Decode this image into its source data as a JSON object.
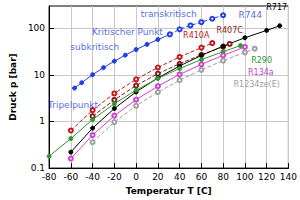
{
  "chart_data": {
    "type": "line",
    "x_label": "Temperatur T [C]",
    "y_label": "Druck p [bar]",
    "log": "y",
    "grid": true,
    "xlim": [
      -80,
      140
    ],
    "xticks": [
      -80,
      -60,
      -40,
      -20,
      0,
      20,
      40,
      60,
      80,
      100,
      120,
      140
    ],
    "ylim": [
      0.1,
      300
    ],
    "yticks": [
      0.1,
      1,
      10,
      100
    ],
    "series": [
      {
        "color": "#1f3fe0",
        "marker": "circle",
        "line_style": "solid",
        "x": [
          -56.6,
          -50,
          -40,
          -30,
          -20,
          -10,
          0,
          10,
          20,
          31
        ],
        "values": [
          5.2,
          6.8,
          10.1,
          14.3,
          19.7,
          26.5,
          34.9,
          45,
          57.3,
          73.8
        ]
      },
      {
        "color": "#1f3fe0",
        "marker": "open_circle",
        "line_style": "dashed",
        "x": [
          31,
          40,
          50,
          60,
          70,
          80
        ],
        "values": [
          73.8,
          95,
          115,
          135,
          160,
          190
        ]
      },
      {
        "name": "R410A",
        "color": "#c01818",
        "marker": "open_circle",
        "line_style": "dashed",
        "x": [
          -60,
          -40,
          -20,
          0,
          20,
          40,
          60,
          70
        ],
        "values": [
          0.64,
          1.75,
          4.0,
          8.0,
          14.4,
          24.2,
          38.4,
          47.9
        ]
      },
      {
        "name": "R407C",
        "color": "#8b1a1a",
        "marker": "open_circle",
        "line_style": "dashed",
        "x": [
          -40,
          -20,
          0,
          20,
          40,
          60,
          80,
          86
        ],
        "values": [
          1.3,
          2.9,
          5.9,
          10.6,
          17.3,
          27.0,
          40.0,
          46.0
        ]
      },
      {
        "name": "R717",
        "color": "#000000",
        "marker": "circle",
        "line_style": "solid",
        "x": [
          -60,
          -40,
          -20,
          0,
          20,
          40,
          60,
          80,
          100,
          120,
          132
        ],
        "values": [
          0.22,
          0.72,
          1.9,
          4.3,
          8.6,
          15.5,
          26.1,
          41.4,
          62.5,
          90.0,
          113.0
        ]
      },
      {
        "name": "R290",
        "color": "#2a9a2a",
        "marker": "circle",
        "line_style": "solid",
        "x": [
          -80,
          -60,
          -40,
          -20,
          0,
          20,
          40,
          60,
          80,
          96
        ],
        "values": [
          0.18,
          0.43,
          1.1,
          2.4,
          4.7,
          8.4,
          13.7,
          21.2,
          31.4,
          42.5
        ]
      },
      {
        "name": "R134a",
        "color": "#d040d0",
        "marker": "open_circle",
        "line_style": "solid",
        "x": [
          -60,
          -40,
          -20,
          0,
          20,
          40,
          60,
          80,
          100
        ],
        "values": [
          0.16,
          0.51,
          1.33,
          2.93,
          5.72,
          10.2,
          16.8,
          26.3,
          39.7
        ]
      },
      {
        "name": "R1234ze(E)",
        "color": "#a0a0a0",
        "marker": "open_circle",
        "line_style": "dashed",
        "x": [
          -40,
          -20,
          0,
          20,
          40,
          60,
          80,
          100,
          109
        ],
        "values": [
          0.36,
          0.97,
          2.17,
          4.27,
          7.7,
          12.8,
          20.2,
          30.4,
          36.4
        ]
      }
    ],
    "annotations": [
      {
        "text": "R744",
        "x": 105,
        "y": 190
      },
      {
        "text": "transkritisch",
        "x": 30,
        "y": 200
      },
      {
        "text": "Kritischer Punkt",
        "x": -8,
        "y": 85
      },
      {
        "text": "subkritisch",
        "x": -38,
        "y": 40
      },
      {
        "text": "Tripelpunkt",
        "x": -58,
        "y": 2.3
      }
    ]
  }
}
